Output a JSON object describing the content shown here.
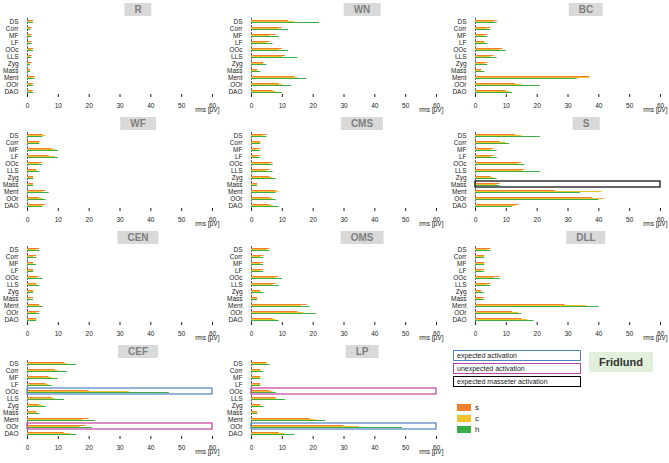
{
  "chart_data": [
    {
      "type": "bar",
      "orientation": "horizontal",
      "title": "R",
      "categories": [
        "DS",
        "Corr",
        "MF",
        "LF",
        "OOc",
        "LLS",
        "Zyg",
        "Mass",
        "Ment",
        "OOr",
        "DAO"
      ],
      "series": [
        {
          "name": "s",
          "color": "#f07f2d",
          "values": [
            2,
            1.5,
            1.5,
            1.5,
            2,
            1.5,
            1.5,
            1,
            2.5,
            2,
            2
          ]
        },
        {
          "name": "c",
          "color": "#f2c12e",
          "values": [
            1.5,
            1,
            1,
            1,
            1.5,
            1,
            1,
            1,
            2,
            1.5,
            1.5
          ]
        },
        {
          "name": "h",
          "color": "#3daa48",
          "values": [
            2,
            1,
            1.5,
            1.5,
            2,
            1.5,
            1,
            1,
            2.5,
            2,
            2
          ]
        }
      ],
      "xlim": [
        0,
        60
      ],
      "xticks": [
        0,
        10,
        20,
        30,
        40,
        50,
        60
      ],
      "x_label": "rms [µV]"
    },
    {
      "type": "bar",
      "orientation": "horizontal",
      "title": "WN",
      "categories": [
        "DS",
        "Corr",
        "MF",
        "LF",
        "OOc",
        "LLS",
        "Zyg",
        "Mass",
        "Ment",
        "OOr",
        "DAO"
      ],
      "series": [
        {
          "name": "s",
          "color": "#f07f2d",
          "values": [
            12,
            10,
            8,
            6,
            10,
            11,
            4,
            2,
            14,
            9,
            7
          ]
        },
        {
          "name": "c",
          "color": "#f2c12e",
          "values": [
            14,
            9,
            6,
            5,
            9,
            10,
            4,
            2,
            15,
            10,
            8
          ]
        },
        {
          "name": "h",
          "color": "#3daa48",
          "values": [
            22,
            12,
            9,
            7,
            12,
            15,
            5,
            3,
            18,
            13,
            10
          ]
        }
      ],
      "xlim": [
        0,
        60
      ],
      "xticks": [
        0,
        10,
        20,
        30,
        40,
        50,
        60
      ],
      "x_label": "rms [µV]"
    },
    {
      "type": "bar",
      "orientation": "horizontal",
      "title": "BC",
      "categories": [
        "DS",
        "Corr",
        "MF",
        "LF",
        "OOc",
        "LLS",
        "Zyg",
        "Mass",
        "Ment",
        "OOr",
        "DAO"
      ],
      "series": [
        {
          "name": "s",
          "color": "#f07f2d",
          "values": [
            7,
            5,
            4,
            3,
            9,
            6,
            4,
            2,
            37,
            13,
            10
          ]
        },
        {
          "name": "c",
          "color": "#f2c12e",
          "values": [
            6,
            4,
            3,
            3,
            8,
            5,
            3,
            2,
            37,
            15,
            11
          ]
        },
        {
          "name": "h",
          "color": "#3daa48",
          "values": [
            7,
            5,
            4,
            4,
            10,
            7,
            4,
            3,
            33,
            21,
            12
          ]
        }
      ],
      "xlim": [
        0,
        60
      ],
      "xticks": [
        0,
        10,
        20,
        30,
        40,
        50,
        60
      ],
      "x_label": "rms [µV]"
    },
    {
      "type": "bar",
      "orientation": "horizontal",
      "title": "WF",
      "categories": [
        "DS",
        "Corr",
        "MF",
        "LF",
        "OOc",
        "LLS",
        "Zyg",
        "Mass",
        "Ment",
        "OOr",
        "DAO"
      ],
      "series": [
        {
          "name": "s",
          "color": "#f07f2d",
          "values": [
            5,
            4,
            8,
            7,
            5,
            3,
            2,
            2,
            6,
            4,
            6
          ]
        },
        {
          "name": "c",
          "color": "#f2c12e",
          "values": [
            6,
            4,
            9,
            9,
            4,
            3,
            2,
            2,
            5,
            5,
            5
          ]
        },
        {
          "name": "h",
          "color": "#3daa48",
          "values": [
            5,
            4,
            10,
            10,
            5,
            4,
            2,
            2,
            7,
            6,
            5
          ]
        }
      ],
      "xlim": [
        0,
        60
      ],
      "xticks": [
        0,
        10,
        20,
        30,
        40,
        50,
        60
      ],
      "x_label": "rms [µV]"
    },
    {
      "type": "bar",
      "orientation": "horizontal",
      "title": "CMS",
      "categories": [
        "DS",
        "Corr",
        "MF",
        "LF",
        "OOc",
        "LLS",
        "Zyg",
        "Mass",
        "Ment",
        "OOr",
        "DAO"
      ],
      "series": [
        {
          "name": "s",
          "color": "#f07f2d",
          "values": [
            5,
            3,
            3,
            3,
            7,
            6,
            6,
            2,
            8,
            6,
            6
          ]
        },
        {
          "name": "c",
          "color": "#f2c12e",
          "values": [
            4,
            3,
            2,
            2,
            6,
            5,
            7,
            2,
            9,
            7,
            7
          ]
        },
        {
          "name": "h",
          "color": "#3daa48",
          "values": [
            5,
            3,
            3,
            3,
            7,
            7,
            8,
            2,
            8,
            8,
            9
          ]
        }
      ],
      "xlim": [
        0,
        60
      ],
      "xticks": [
        0,
        10,
        20,
        30,
        40,
        50,
        60
      ],
      "x_label": "rms [µV]"
    },
    {
      "type": "bar",
      "orientation": "horizontal",
      "title": "S",
      "categories": [
        "DS",
        "Corr",
        "MF",
        "LF",
        "OOc",
        "LLS",
        "Zyg",
        "Mass",
        "Ment",
        "OOr",
        "DAO"
      ],
      "series": [
        {
          "name": "s",
          "color": "#f07f2d",
          "values": [
            13,
            8,
            6,
            6,
            15,
            16,
            5,
            8,
            26,
            38,
            14
          ]
        },
        {
          "name": "c",
          "color": "#f2c12e",
          "values": [
            15,
            10,
            5,
            5,
            14,
            15,
            6,
            7,
            41,
            42,
            13
          ]
        },
        {
          "name": "h",
          "color": "#3daa48",
          "values": [
            21,
            11,
            7,
            7,
            16,
            21,
            7,
            8,
            34,
            40,
            12
          ]
        }
      ],
      "xlim": [
        0,
        60
      ],
      "xticks": [
        0,
        10,
        20,
        30,
        40,
        50,
        60
      ],
      "x_label": "rms [µV]",
      "annotations": [
        {
          "category": "Mass",
          "box": "expected masseter activation"
        }
      ]
    },
    {
      "type": "bar",
      "orientation": "horizontal",
      "title": "CEN",
      "categories": [
        "DS",
        "Corr",
        "MF",
        "LF",
        "OOc",
        "LLS",
        "Zyg",
        "Mass",
        "Ment",
        "OOr",
        "DAO"
      ],
      "series": [
        {
          "name": "s",
          "color": "#f07f2d",
          "values": [
            4,
            3,
            2,
            2,
            4,
            3,
            2,
            2,
            4,
            4,
            3
          ]
        },
        {
          "name": "c",
          "color": "#f2c12e",
          "values": [
            3,
            2,
            2,
            2,
            3,
            3,
            2,
            1,
            4,
            3,
            3
          ]
        },
        {
          "name": "h",
          "color": "#3daa48",
          "values": [
            4,
            3,
            3,
            2,
            5,
            4,
            2,
            2,
            5,
            4,
            3
          ]
        }
      ],
      "xlim": [
        0,
        60
      ],
      "xticks": [
        0,
        10,
        20,
        30,
        40,
        50,
        60
      ],
      "x_label": "rms [µV]"
    },
    {
      "type": "bar",
      "orientation": "horizontal",
      "title": "OMS",
      "categories": [
        "DS",
        "Corr",
        "MF",
        "LF",
        "OOc",
        "LLS",
        "Zyg",
        "Mass",
        "Ment",
        "OOr",
        "DAO"
      ],
      "series": [
        {
          "name": "s",
          "color": "#f07f2d",
          "values": [
            6,
            4,
            4,
            4,
            9,
            8,
            3,
            2,
            18,
            15,
            7
          ]
        },
        {
          "name": "c",
          "color": "#f2c12e",
          "values": [
            5,
            3,
            3,
            3,
            8,
            7,
            3,
            2,
            16,
            17,
            8
          ]
        },
        {
          "name": "h",
          "color": "#3daa48",
          "values": [
            6,
            4,
            4,
            4,
            10,
            9,
            4,
            2,
            19,
            21,
            9
          ]
        }
      ],
      "xlim": [
        0,
        60
      ],
      "xticks": [
        0,
        10,
        20,
        30,
        40,
        50,
        60
      ],
      "x_label": "rms [µV]"
    },
    {
      "type": "bar",
      "orientation": "horizontal",
      "title": "DLL",
      "categories": [
        "DS",
        "Corr",
        "MF",
        "LF",
        "OOc",
        "LLS",
        "Zyg",
        "Mass",
        "Ment",
        "OOr",
        "DAO"
      ],
      "series": [
        {
          "name": "s",
          "color": "#f07f2d",
          "values": [
            5,
            3,
            3,
            3,
            8,
            5,
            2,
            3,
            29,
            12,
            15
          ]
        },
        {
          "name": "c",
          "color": "#f2c12e",
          "values": [
            4,
            3,
            3,
            2,
            6,
            4,
            2,
            2,
            36,
            14,
            17
          ]
        },
        {
          "name": "h",
          "color": "#3daa48",
          "values": [
            5,
            3,
            3,
            3,
            8,
            5,
            3,
            3,
            40,
            15,
            19
          ]
        }
      ],
      "xlim": [
        0,
        60
      ],
      "xticks": [
        0,
        10,
        20,
        30,
        40,
        50,
        60
      ],
      "x_label": "rms [µV]"
    },
    {
      "type": "bar",
      "orientation": "horizontal",
      "title": "CEF",
      "categories": [
        "DS",
        "Corr",
        "MF",
        "LF",
        "OOc",
        "LLS",
        "Zyg",
        "Mass",
        "Ment",
        "OOr",
        "DAO"
      ],
      "series": [
        {
          "name": "s",
          "color": "#f07f2d",
          "values": [
            12,
            9,
            7,
            6,
            20,
            8,
            4,
            3,
            20,
            19,
            12
          ]
        },
        {
          "name": "c",
          "color": "#f2c12e",
          "values": [
            13,
            10,
            8,
            7,
            33,
            9,
            5,
            3,
            18,
            17,
            14
          ]
        },
        {
          "name": "h",
          "color": "#3daa48",
          "values": [
            16,
            13,
            10,
            8,
            46,
            12,
            6,
            4,
            22,
            21,
            16
          ]
        }
      ],
      "xlim": [
        0,
        60
      ],
      "xticks": [
        0,
        10,
        20,
        30,
        40,
        50,
        60
      ],
      "x_label": "rms [µV]",
      "annotations": [
        {
          "category": "OOc",
          "box": "expected activation"
        },
        {
          "category": "OOr",
          "box": "unexpected activation"
        }
      ]
    },
    {
      "type": "bar",
      "orientation": "horizontal",
      "title": "LP",
      "categories": [
        "DS",
        "Corr",
        "MF",
        "LF",
        "OOc",
        "LLS",
        "Zyg",
        "Mass",
        "Ment",
        "OOr",
        "DAO"
      ],
      "series": [
        {
          "name": "s",
          "color": "#f07f2d",
          "values": [
            5,
            3,
            3,
            3,
            6,
            8,
            3,
            2,
            19,
            30,
            9
          ]
        },
        {
          "name": "c",
          "color": "#f2c12e",
          "values": [
            5,
            3,
            3,
            3,
            7,
            8,
            3,
            2,
            21,
            35,
            11
          ]
        },
        {
          "name": "h",
          "color": "#3daa48",
          "values": [
            6,
            4,
            3,
            3,
            8,
            11,
            4,
            2,
            24,
            49,
            14
          ]
        }
      ],
      "xlim": [
        0,
        60
      ],
      "xticks": [
        0,
        10,
        20,
        30,
        40,
        50,
        60
      ],
      "x_label": "rms [µV]",
      "annotations": [
        {
          "category": "OOc",
          "box": "unexpected activation"
        },
        {
          "category": "OOr",
          "box": "expected activation"
        }
      ]
    }
  ],
  "box_legend": [
    {
      "label": "expected activation",
      "color": "#4f81bd"
    },
    {
      "label": "unexpected activation",
      "color": "#c040a0"
    },
    {
      "label": "expected masseter activation",
      "color": "#000000"
    }
  ],
  "caption": "Fridlund"
}
